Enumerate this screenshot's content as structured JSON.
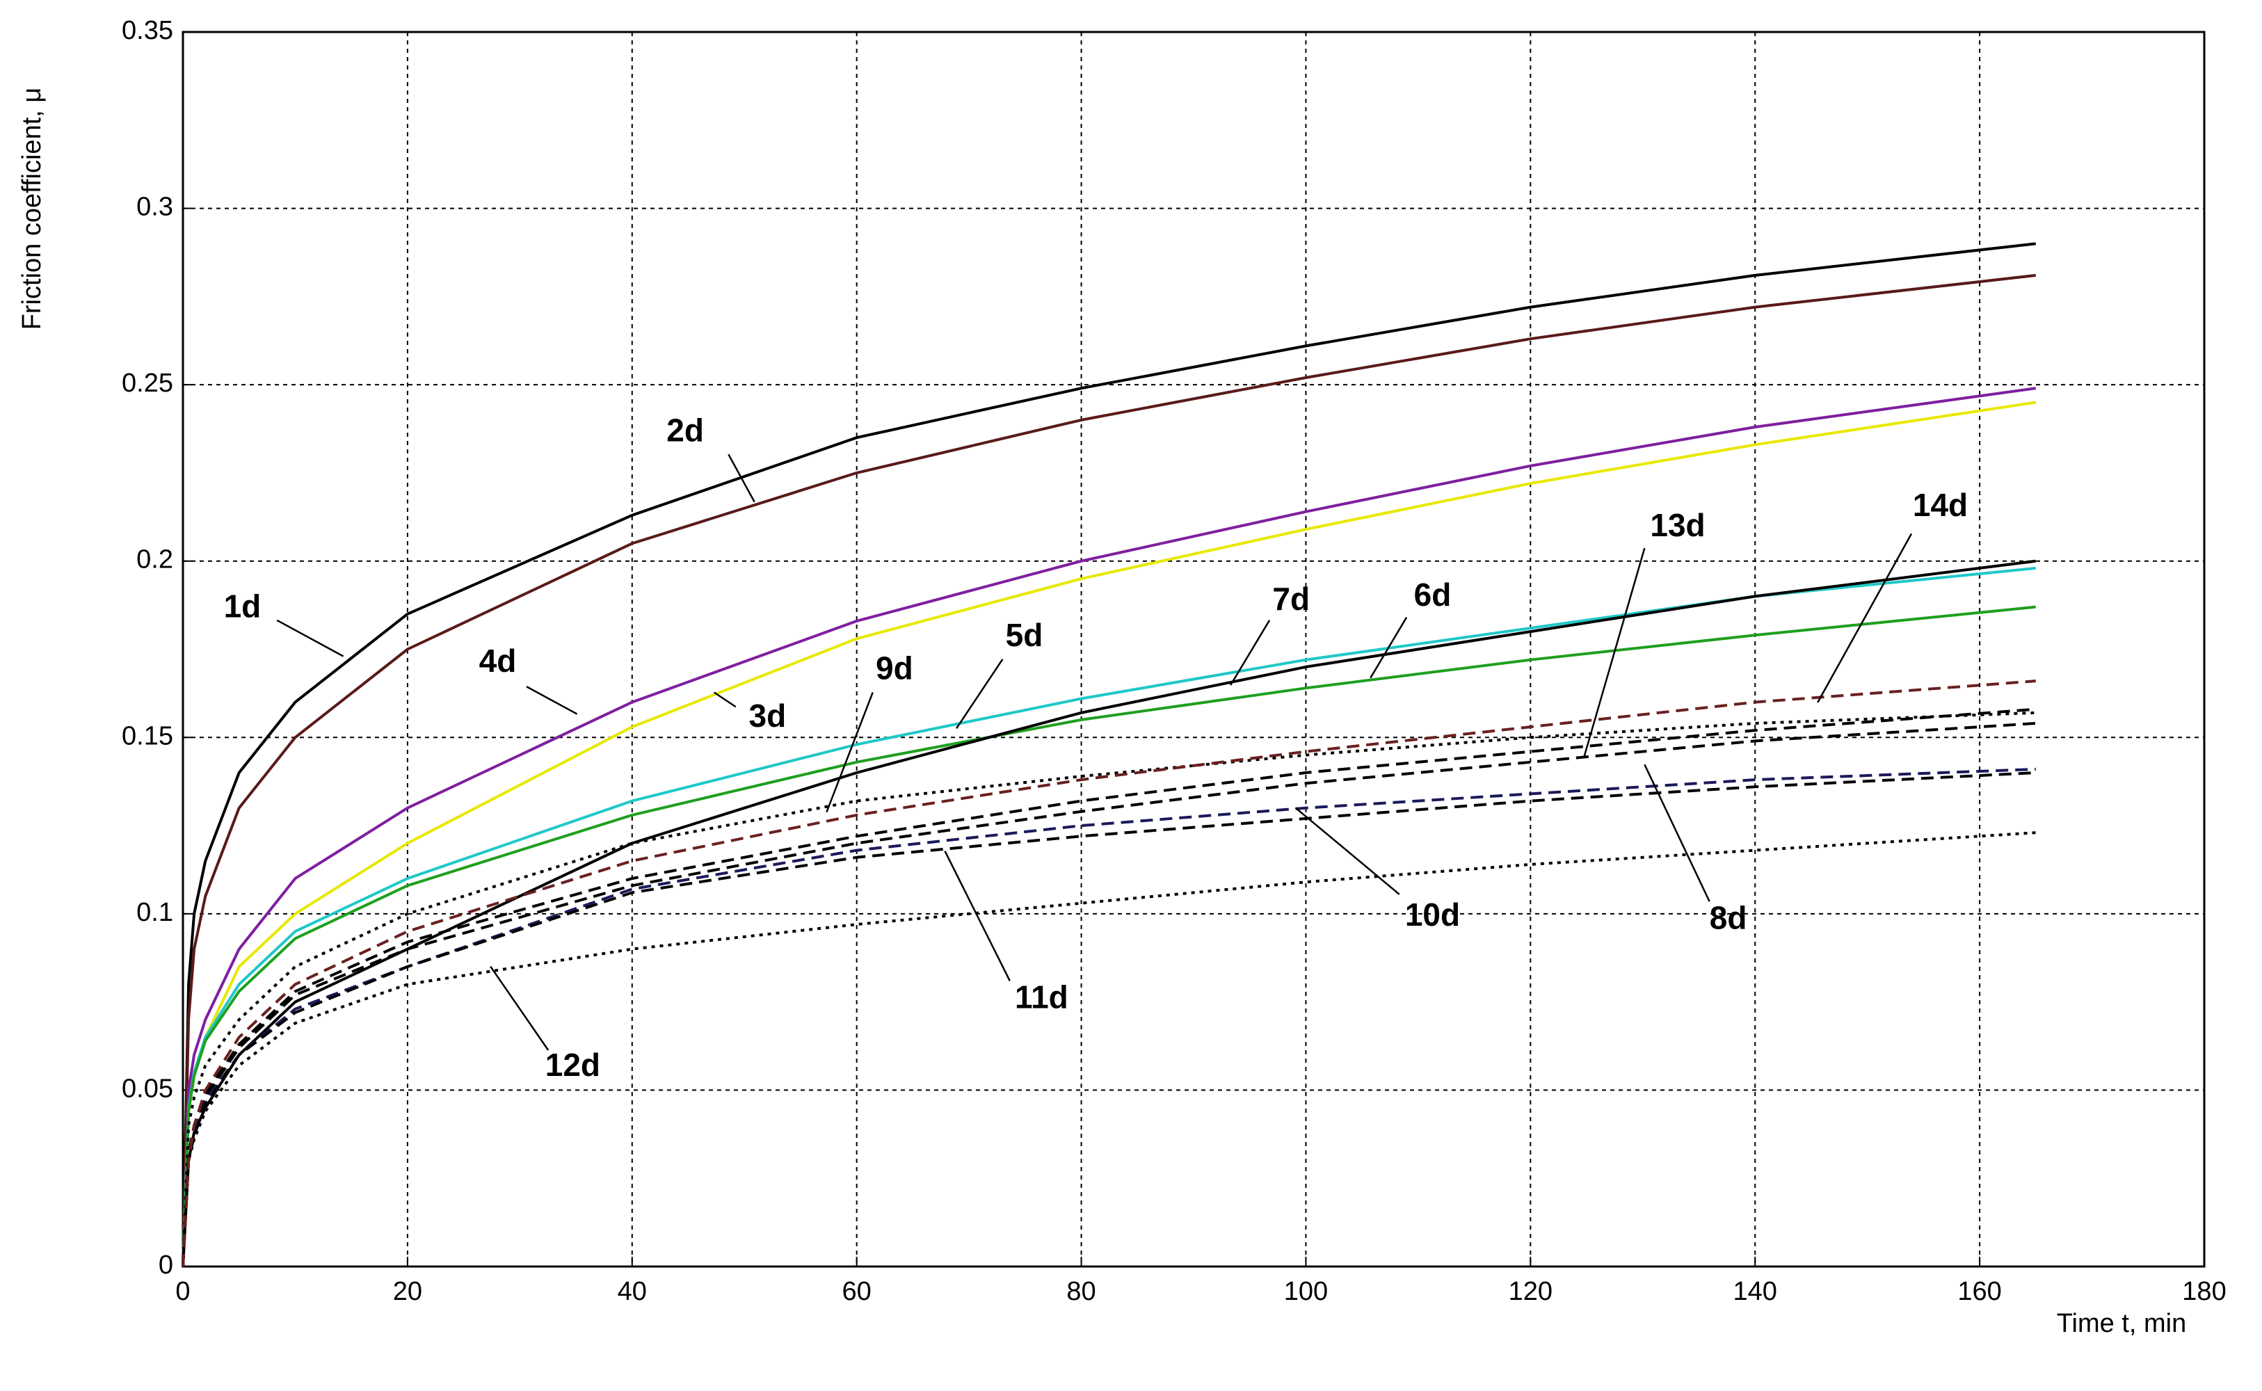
{
  "chart_data": {
    "type": "line",
    "x_label": "Time t, min",
    "y_label": "Friction coefficient, μ",
    "x": [
      0,
      0.5,
      1,
      2,
      5,
      10,
      20,
      40,
      60,
      80,
      100,
      120,
      140,
      165
    ],
    "xlim": [
      0,
      180
    ],
    "xticks": [
      0,
      20,
      40,
      60,
      80,
      100,
      120,
      140,
      160,
      180
    ],
    "ylim": [
      0,
      0.35
    ],
    "yticks": [
      0,
      0.05,
      0.1,
      0.15,
      0.2,
      0.25,
      0.3,
      0.35
    ],
    "grid": true,
    "series": [
      {
        "name": "1d",
        "color": "#000000",
        "style": "solid",
        "values": [
          0,
          0.08,
          0.1,
          0.115,
          0.14,
          0.16,
          0.185,
          0.213,
          0.235,
          0.249,
          0.261,
          0.272,
          0.281,
          0.29
        ]
      },
      {
        "name": "2d",
        "color": "#5a1a1a",
        "style": "solid",
        "values": [
          0,
          0.07,
          0.09,
          0.105,
          0.13,
          0.15,
          0.175,
          0.205,
          0.225,
          0.24,
          0.252,
          0.263,
          0.272,
          0.281
        ]
      },
      {
        "name": "3d",
        "color": "#e8e800",
        "style": "solid",
        "values": [
          0,
          0.045,
          0.055,
          0.065,
          0.085,
          0.1,
          0.12,
          0.153,
          0.178,
          0.195,
          0.209,
          0.222,
          0.233,
          0.245
        ]
      },
      {
        "name": "4d",
        "color": "#7f1f9f",
        "style": "solid",
        "values": [
          0,
          0.05,
          0.06,
          0.07,
          0.09,
          0.11,
          0.13,
          0.16,
          0.183,
          0.2,
          0.214,
          0.227,
          0.238,
          0.249
        ]
      },
      {
        "name": "5d",
        "color": "#20c8c8",
        "style": "solid",
        "values": [
          0,
          0.045,
          0.055,
          0.065,
          0.08,
          0.095,
          0.11,
          0.132,
          0.148,
          0.161,
          0.172,
          0.181,
          0.19,
          0.198
        ]
      },
      {
        "name": "6d",
        "color": "#1f9f1f",
        "style": "solid",
        "values": [
          0,
          0.044,
          0.054,
          0.064,
          0.078,
          0.093,
          0.108,
          0.128,
          0.143,
          0.155,
          0.164,
          0.172,
          0.179,
          0.187
        ]
      },
      {
        "name": "7d",
        "color": "#000000",
        "style": "solid",
        "values": [
          0,
          0.03,
          0.038,
          0.045,
          0.06,
          0.075,
          0.09,
          0.12,
          0.14,
          0.157,
          0.17,
          0.18,
          0.19,
          0.2
        ]
      },
      {
        "name": "8d",
        "color": "#000000",
        "style": "dashed",
        "values": [
          0,
          0.03,
          0.038,
          0.048,
          0.062,
          0.077,
          0.09,
          0.108,
          0.12,
          0.129,
          0.137,
          0.143,
          0.149,
          0.154
        ]
      },
      {
        "name": "9d",
        "color": "#000000",
        "style": "dotted",
        "values": [
          0,
          0.04,
          0.048,
          0.057,
          0.07,
          0.085,
          0.1,
          0.12,
          0.132,
          0.139,
          0.145,
          0.15,
          0.154,
          0.157
        ]
      },
      {
        "name": "10d",
        "color": "#1a1a5a",
        "style": "dashed",
        "values": [
          0,
          0.03,
          0.038,
          0.047,
          0.06,
          0.073,
          0.085,
          0.107,
          0.118,
          0.125,
          0.13,
          0.134,
          0.138,
          0.141
        ]
      },
      {
        "name": "11d",
        "color": "#000000",
        "style": "dashed",
        "values": [
          0,
          0.03,
          0.037,
          0.046,
          0.06,
          0.072,
          0.085,
          0.106,
          0.116,
          0.122,
          0.127,
          0.132,
          0.136,
          0.14
        ]
      },
      {
        "name": "12d",
        "color": "#000000",
        "style": "dotted",
        "values": [
          0,
          0.03,
          0.036,
          0.044,
          0.057,
          0.069,
          0.08,
          0.09,
          0.097,
          0.103,
          0.109,
          0.114,
          0.118,
          0.123
        ]
      },
      {
        "name": "13d",
        "color": "#000000",
        "style": "dashed",
        "values": [
          0,
          0.032,
          0.04,
          0.049,
          0.063,
          0.078,
          0.092,
          0.11,
          0.122,
          0.132,
          0.14,
          0.146,
          0.152,
          0.158
        ]
      },
      {
        "name": "14d",
        "color": "#6a2020",
        "style": "dashed",
        "values": [
          0,
          0.03,
          0.04,
          0.05,
          0.065,
          0.08,
          0.095,
          0.115,
          0.128,
          0.138,
          0.146,
          0.153,
          0.16,
          0.166
        ]
      }
    ]
  }
}
